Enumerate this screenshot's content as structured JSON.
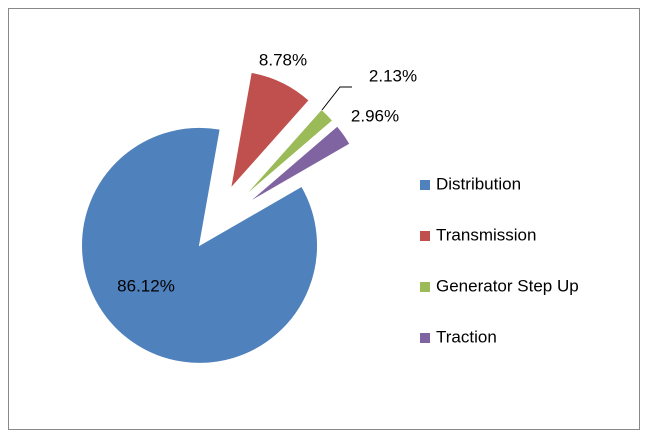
{
  "chart_data": {
    "type": "pie",
    "categories": [
      "Distribution",
      "Transmission",
      "Generator Step Up",
      "Traction"
    ],
    "values": [
      86.12,
      8.78,
      2.13,
      2.96
    ],
    "value_labels": [
      "86.12%",
      "8.78%",
      "2.13%",
      "2.96%"
    ],
    "colors": [
      "#4f81bd",
      "#c0504d",
      "#9bbb59",
      "#8064a2"
    ]
  }
}
